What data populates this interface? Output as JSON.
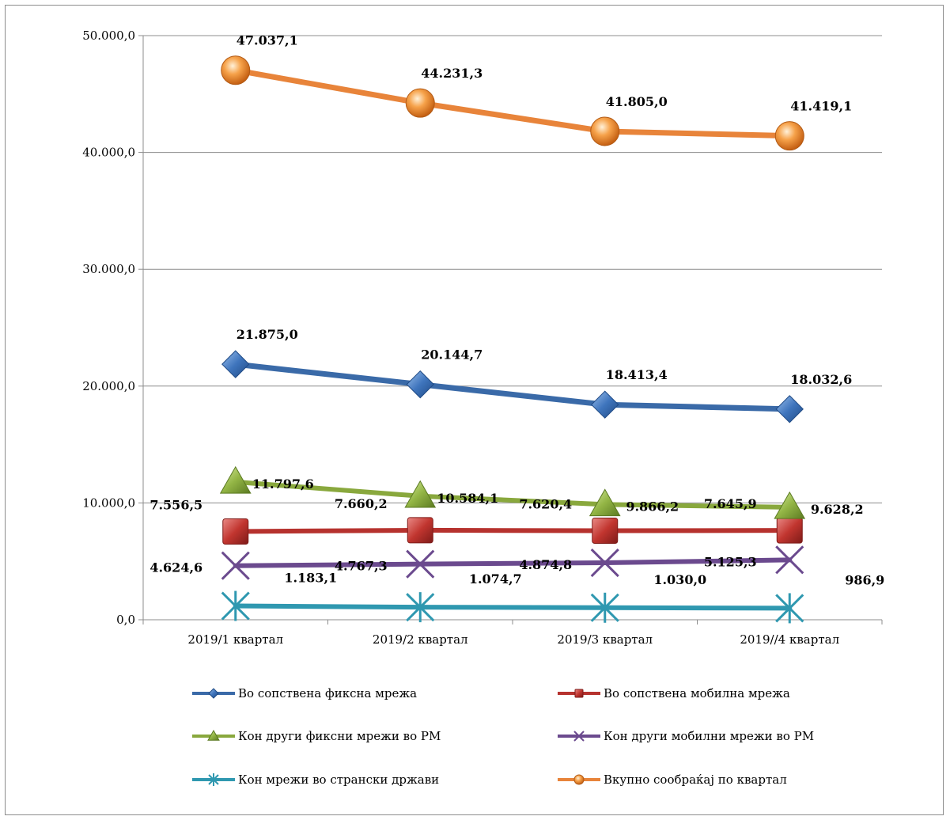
{
  "chart_data": {
    "type": "line",
    "categories": [
      "2019/1 квартал",
      "2019/2 квартал",
      "2019/3 квартал",
      "2019//4 квартал"
    ],
    "ylim": [
      0,
      50000
    ],
    "yticks": [
      "0,0",
      "10.000,0",
      "20.000,0",
      "30.000,0",
      "40.000,0",
      "50.000,0"
    ],
    "grid": true,
    "legend_position": "bottom",
    "series": [
      {
        "name": "Во сопствена фиксна  мрежа",
        "values": [
          21875.0,
          20144.7,
          18413.4,
          18032.6
        ],
        "labels": [
          "21.875,0",
          "20.144,7",
          "18.413,4",
          "18.032,6"
        ],
        "color": "#3a6aa8",
        "marker": "diamond"
      },
      {
        "name": "Во сопствена мобилна мрежа",
        "values": [
          7556.5,
          7660.2,
          7620.4,
          7645.9
        ],
        "labels": [
          "7.556,5",
          "7.660,2",
          "7.620,4",
          "7.645,9"
        ],
        "color": "#b6322e",
        "marker": "square"
      },
      {
        "name": "Кон други фиксни мрежи во РМ",
        "values": [
          11797.6,
          10584.1,
          9866.2,
          9628.2
        ],
        "labels": [
          "11.797,6",
          "10.584,1",
          "9.866,2",
          "9.628,2"
        ],
        "color": "#89a83d",
        "marker": "triangle"
      },
      {
        "name": "Кон други мобилни мрежи во РМ",
        "values": [
          4624.6,
          4767.3,
          4874.8,
          5125.3
        ],
        "labels": [
          "4.624,6",
          "4.767,3",
          "4.874,8",
          "5.125,3"
        ],
        "color": "#6b4a8e",
        "marker": "x"
      },
      {
        "name": "Кон мрежи во странски држави",
        "values": [
          1183.1,
          1074.7,
          1030.0,
          986.9
        ],
        "labels": [
          "1.183,1",
          "1.074,7",
          "1.030,0",
          "986,9"
        ],
        "color": "#2f98b0",
        "marker": "star"
      },
      {
        "name": "Вкупно сообраќај по квартал",
        "values": [
          47037.1,
          44231.3,
          41805.0,
          41419.1
        ],
        "labels": [
          "47.037,1",
          "44.231,3",
          "41.805,0",
          "41.419,1"
        ],
        "color": "#e8843a",
        "marker": "circle"
      }
    ]
  }
}
